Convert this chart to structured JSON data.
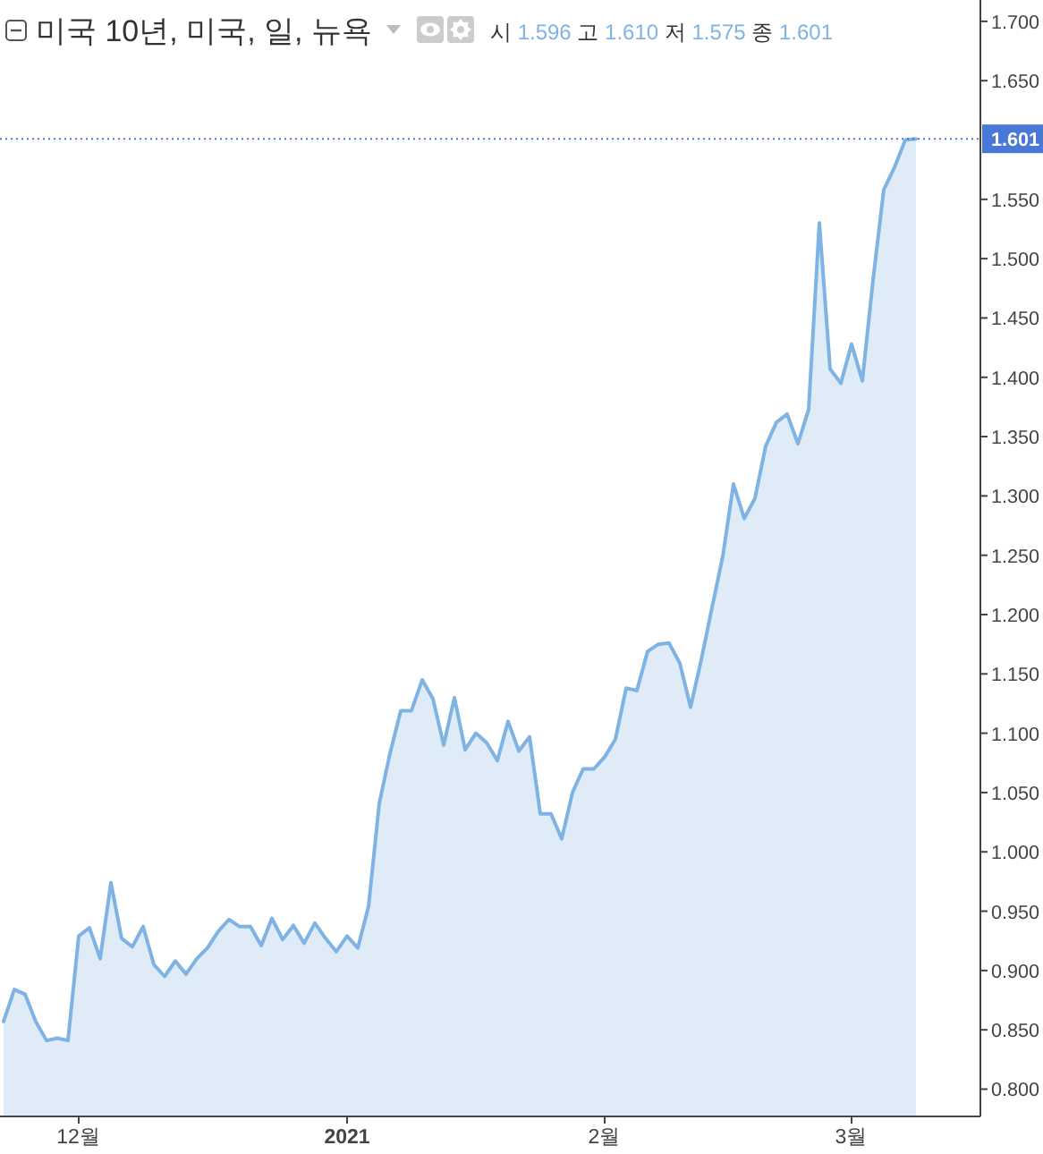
{
  "chart_data": {
    "type": "area",
    "title": "미국 10년, 미국, 일, 뉴욕",
    "subtitle": "시 1.596 고 1.610 저 1.575 종 1.601",
    "categories": [
      null,
      null,
      null,
      null,
      null,
      null,
      null,
      "12월",
      null,
      null,
      null,
      null,
      null,
      null,
      null,
      null,
      null,
      null,
      null,
      null,
      null,
      null,
      null,
      null,
      null,
      null,
      null,
      null,
      null,
      null,
      null,
      null,
      "2021",
      null,
      null,
      null,
      null,
      null,
      null,
      null,
      null,
      null,
      null,
      null,
      null,
      null,
      null,
      null,
      null,
      null,
      null,
      null,
      null,
      null,
      null,
      null,
      "2월",
      null,
      null,
      null,
      null,
      null,
      null,
      null,
      null,
      null,
      null,
      null,
      null,
      null,
      null,
      null,
      null,
      null,
      null,
      null,
      null,
      null,
      null,
      "3월",
      null,
      null,
      null,
      null,
      null,
      null
    ],
    "series": [
      {
        "color": "#7fb3e3",
        "values": [
          0.857,
          0.884,
          0.88,
          0.857,
          0.841,
          0.843,
          0.841,
          0.929,
          0.936,
          0.91,
          0.974,
          0.927,
          0.92,
          0.937,
          0.905,
          0.895,
          0.908,
          0.897,
          0.91,
          0.919,
          0.933,
          0.943,
          0.937,
          0.937,
          0.921,
          0.944,
          0.926,
          0.938,
          0.923,
          0.94,
          0.927,
          0.916,
          0.929,
          0.919,
          0.954,
          1.041,
          1.083,
          1.119,
          1.119,
          1.145,
          1.129,
          1.09,
          1.13,
          1.086,
          1.1,
          1.092,
          1.077,
          1.11,
          1.085,
          1.097,
          1.032,
          1.032,
          1.011,
          1.05,
          1.07,
          1.07,
          1.08,
          1.095,
          1.138,
          1.136,
          1.169,
          1.175,
          1.176,
          1.159,
          1.122,
          1.162,
          1.206,
          1.249,
          1.31,
          1.281,
          1.298,
          1.342,
          1.362,
          1.369,
          1.344,
          1.373,
          1.53,
          1.407,
          1.395,
          1.428,
          1.397,
          1.482,
          1.558,
          1.577,
          1.6,
          1.601
        ]
      }
    ],
    "ylim": [
      0.777,
      1.718
    ],
    "yticks": [
      {
        "value": 0.8,
        "label": "0.800"
      },
      {
        "value": 0.85,
        "label": "0.850"
      },
      {
        "value": 0.9,
        "label": "0.900"
      },
      {
        "value": 0.95,
        "label": "0.950"
      },
      {
        "value": 1.0,
        "label": "1.000"
      },
      {
        "value": 1.05,
        "label": "1.050"
      },
      {
        "value": 1.1,
        "label": "1.100"
      },
      {
        "value": 1.15,
        "label": "1.150"
      },
      {
        "value": 1.2,
        "label": "1.200"
      },
      {
        "value": 1.25,
        "label": "1.250"
      },
      {
        "value": 1.3,
        "label": "1.300"
      },
      {
        "value": 1.35,
        "label": "1.350"
      },
      {
        "value": 1.4,
        "label": "1.400"
      },
      {
        "value": 1.45,
        "label": "1.450"
      },
      {
        "value": 1.5,
        "label": "1.500"
      },
      {
        "value": 1.55,
        "label": "1.550"
      },
      {
        "value": 1.65,
        "label": "1.650"
      },
      {
        "value": 1.7,
        "label": "1.700"
      }
    ],
    "ref_lines": [
      {
        "axis": "y",
        "value": 1.601,
        "label": "1.601",
        "color": "#4a78d8",
        "line_style": "dotted"
      }
    ],
    "line_style": "solid"
  }
}
